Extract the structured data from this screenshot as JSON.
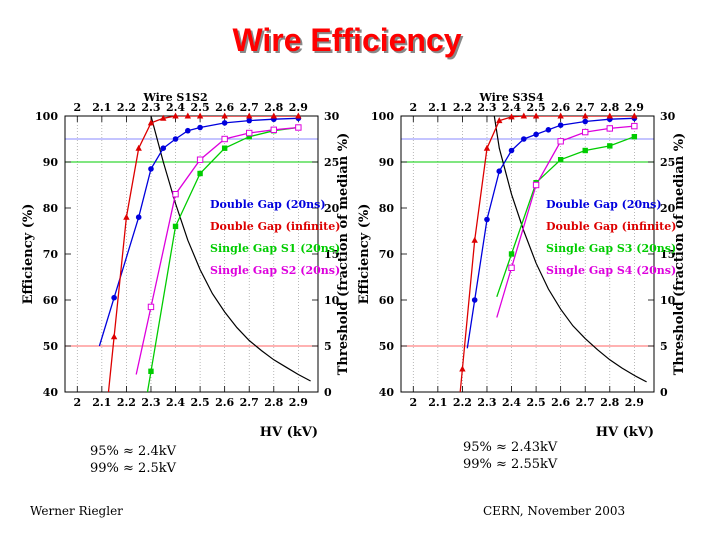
{
  "slide": {
    "title": "Wire Efficiency",
    "notes": {
      "left": [
        "95% ≈ 2.4kV",
        "99% ≈ 2.5kV"
      ],
      "right": [
        "95% ≈ 2.43kV",
        "99% ≈ 2.55kV"
      ]
    },
    "footer": {
      "author": "Werner Riegler",
      "event": "CERN, November 2003"
    }
  },
  "chart_data": [
    {
      "type": "line",
      "title": "Wire S1S2",
      "xlabel": "HV (kV)",
      "ylabel": "Efficiency (%)",
      "y2label": "Threshold (fraction of median %)",
      "xlim": [
        1.95,
        2.98
      ],
      "ylim": [
        40,
        100
      ],
      "y2lim": [
        0,
        30
      ],
      "xticks": [
        2,
        2.1,
        2.2,
        2.3,
        2.4,
        2.5,
        2.6,
        2.7,
        2.8,
        2.9
      ],
      "xtick_labels": [
        "2",
        "2.1",
        "2.2",
        "2.3",
        "2.4",
        "2.5",
        "2.6",
        "2.7",
        "2.8",
        "2.9"
      ],
      "yticks": [
        40,
        50,
        60,
        70,
        80,
        90,
        100
      ],
      "y2ticks": [
        0,
        5,
        10,
        15,
        20,
        25,
        30
      ],
      "reference_lines": [
        {
          "y": 95,
          "color": "#8888ff"
        },
        {
          "y": 90,
          "color": "#00cc00"
        },
        {
          "y": 50,
          "color": "#ff6666"
        }
      ],
      "series": [
        {
          "name": "Double Gap (20ns)",
          "color": "#0000dd",
          "marker": "circle",
          "x": [
            2.15,
            2.25,
            2.3,
            2.35,
            2.4,
            2.45,
            2.5,
            2.6,
            2.7,
            2.8,
            2.9
          ],
          "y": [
            60.5,
            78,
            88.5,
            93,
            95,
            96.8,
            97.5,
            98.5,
            99,
            99.3,
            99.5
          ]
        },
        {
          "name": "Double Gap (infinite)",
          "color": "#dd0000",
          "marker": "triangle",
          "x": [
            2.15,
            2.2,
            2.25,
            2.3,
            2.35,
            2.4,
            2.45,
            2.5,
            2.6,
            2.7,
            2.8,
            2.9
          ],
          "y": [
            52,
            78,
            93,
            98.5,
            99.5,
            100,
            100,
            100,
            100,
            100,
            100,
            100
          ]
        },
        {
          "name": "Single Gap S1 (20ns)",
          "color": "#00cc00",
          "marker": "square",
          "x": [
            2.3,
            2.4,
            2.5,
            2.6,
            2.7,
            2.8,
            2.9
          ],
          "y": [
            44.5,
            76,
            87.5,
            93,
            95.5,
            96.8,
            97.5
          ]
        },
        {
          "name": "Single Gap S2 (20ns)",
          "color": "#dd00dd",
          "marker": "open-square",
          "x": [
            2.3,
            2.4,
            2.5,
            2.6,
            2.7,
            2.8,
            2.9
          ],
          "y": [
            58.5,
            83,
            90.5,
            95,
            96.3,
            97,
            97.5
          ]
        }
      ],
      "threshold_curve": {
        "color": "#000000",
        "x": [
          2.3,
          2.35,
          2.4,
          2.45,
          2.5,
          2.55,
          2.6,
          2.65,
          2.7,
          2.75,
          2.8,
          2.85,
          2.9,
          2.95
        ],
        "y2": [
          30,
          25,
          20.5,
          16.5,
          13.3,
          10.7,
          8.7,
          7,
          5.6,
          4.5,
          3.5,
          2.7,
          1.9,
          1.2
        ]
      },
      "legend_position": "center-right"
    },
    {
      "type": "line",
      "title": "Wire S3S4",
      "xlabel": "HV (kV)",
      "ylabel": "Efficiency (%)",
      "y2label": "Threshold (fraction of median %)",
      "xlim": [
        1.95,
        2.98
      ],
      "ylim": [
        40,
        100
      ],
      "y2lim": [
        0,
        30
      ],
      "xticks": [
        2,
        2.1,
        2.2,
        2.3,
        2.4,
        2.5,
        2.6,
        2.7,
        2.8,
        2.9
      ],
      "xtick_labels": [
        "2",
        "2.1",
        "2.2",
        "2.3",
        "2.4",
        "2.5",
        "2.6",
        "2.7",
        "2.8",
        "2.9"
      ],
      "yticks": [
        40,
        50,
        60,
        70,
        80,
        90,
        100
      ],
      "y2ticks": [
        0,
        5,
        10,
        15,
        20,
        25,
        30
      ],
      "reference_lines": [
        {
          "y": 95,
          "color": "#8888ff"
        },
        {
          "y": 90,
          "color": "#00cc00"
        },
        {
          "y": 50,
          "color": "#ff6666"
        }
      ],
      "series": [
        {
          "name": "Double Gap (20ns)",
          "color": "#0000dd",
          "marker": "circle",
          "x": [
            2.25,
            2.3,
            2.35,
            2.4,
            2.45,
            2.5,
            2.55,
            2.6,
            2.7,
            2.8,
            2.9
          ],
          "y": [
            60,
            77.5,
            88,
            92.5,
            95,
            96,
            97,
            98,
            98.8,
            99.3,
            99.5
          ]
        },
        {
          "name": "Double Gap (infinite)",
          "color": "#dd0000",
          "marker": "triangle",
          "x": [
            2.2,
            2.25,
            2.3,
            2.35,
            2.4,
            2.45,
            2.5,
            2.6,
            2.7,
            2.8,
            2.9
          ],
          "y": [
            45,
            73,
            93,
            99,
            99.8,
            100,
            100,
            100,
            100,
            100,
            100
          ]
        },
        {
          "name": "Single Gap S3 (20ns)",
          "color": "#00cc00",
          "marker": "square",
          "x": [
            2.4,
            2.5,
            2.6,
            2.7,
            2.8,
            2.9
          ],
          "y": [
            70,
            85.5,
            90.5,
            92.5,
            93.5,
            95.5
          ]
        },
        {
          "name": "Single Gap S4 (20ns)",
          "color": "#dd00dd",
          "marker": "open-square",
          "x": [
            2.4,
            2.5,
            2.6,
            2.7,
            2.8,
            2.9
          ],
          "y": [
            67,
            85,
            94.5,
            96.5,
            97.3,
            97.8
          ]
        }
      ],
      "threshold_curve": {
        "color": "#000000",
        "x": [
          2.33,
          2.35,
          2.4,
          2.45,
          2.5,
          2.55,
          2.6,
          2.65,
          2.7,
          2.75,
          2.8,
          2.85,
          2.9,
          2.95
        ],
        "y2": [
          30,
          26.5,
          21.5,
          17.5,
          14,
          11.2,
          9,
          7.2,
          5.8,
          4.6,
          3.5,
          2.6,
          1.8,
          1.1
        ]
      },
      "legend_position": "center-right"
    }
  ]
}
